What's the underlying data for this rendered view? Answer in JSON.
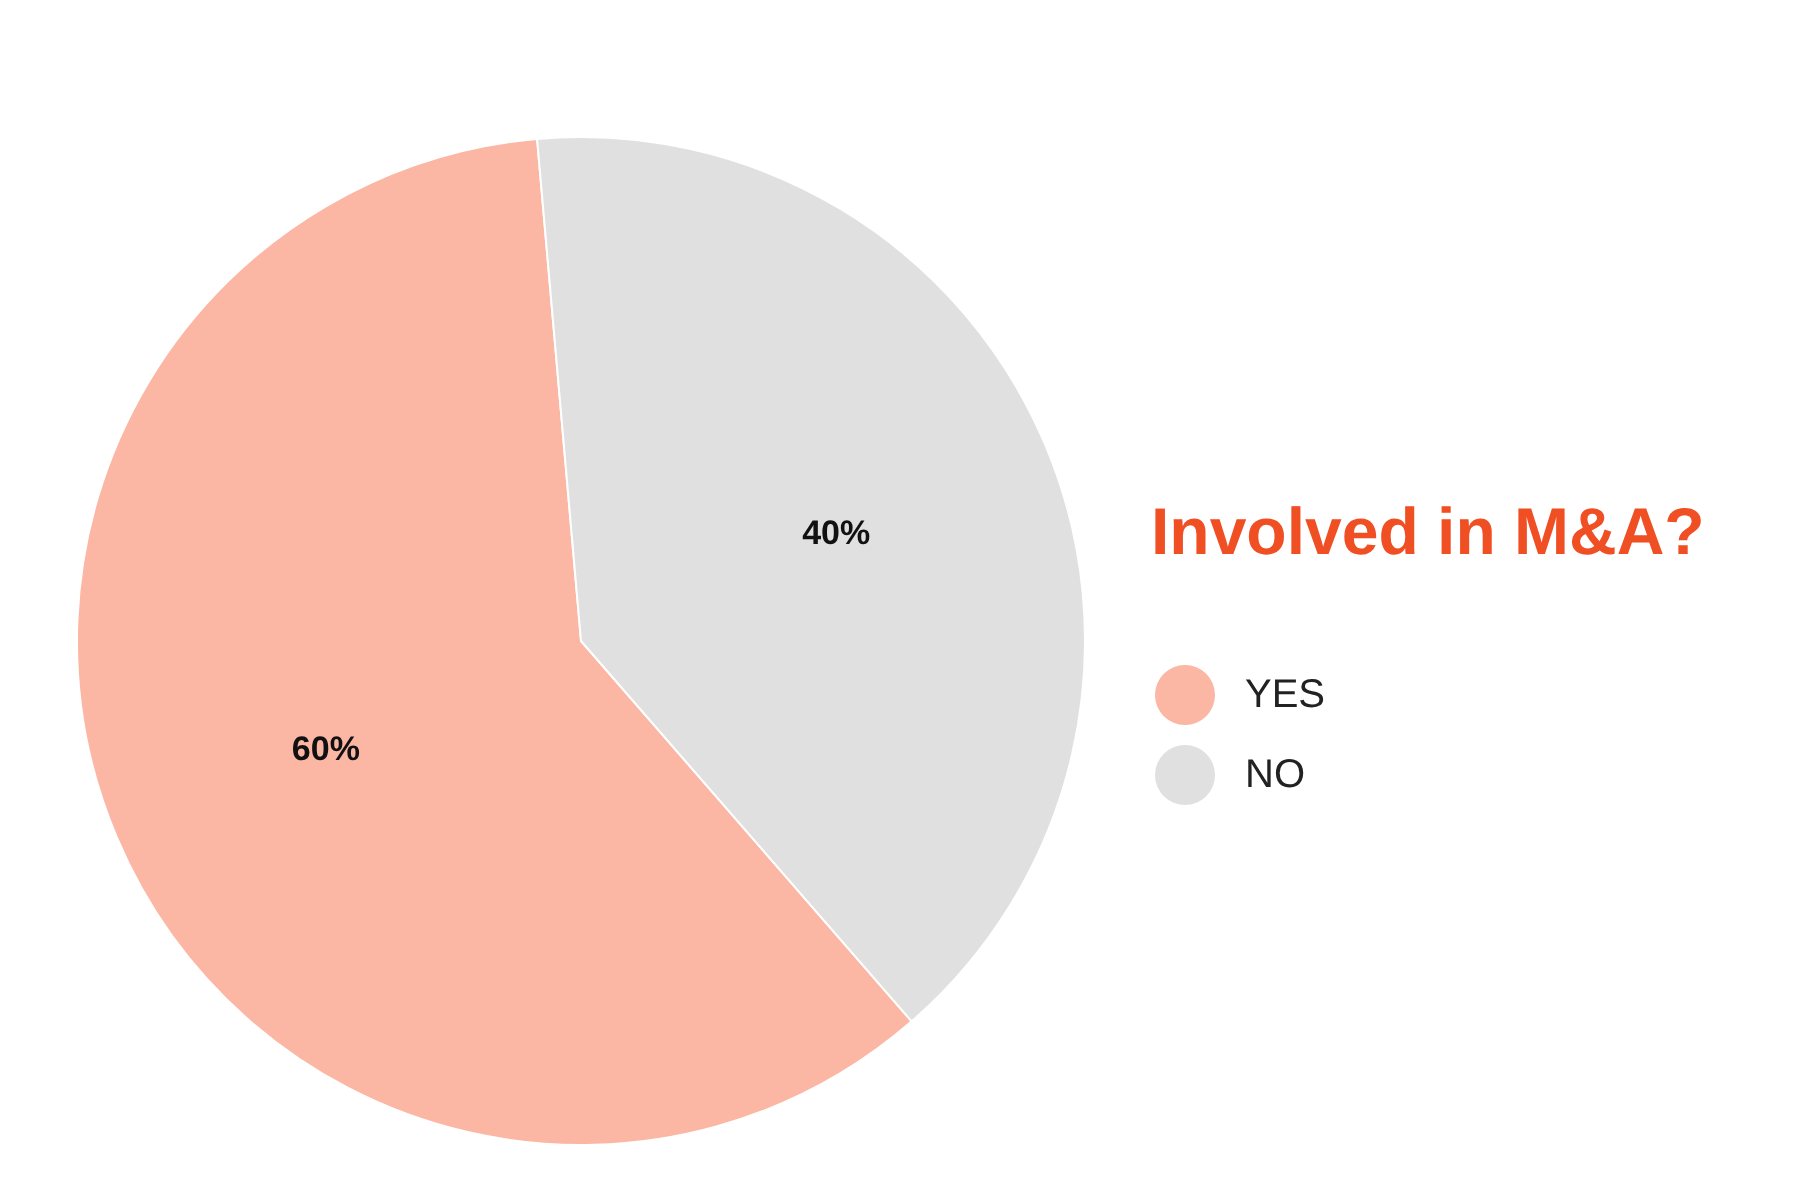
{
  "chart_data": {
    "type": "pie",
    "title": "Involved in M&A?",
    "categories": [
      "YES",
      "NO"
    ],
    "values": [
      60,
      40
    ],
    "colors": [
      "#fbb6a4",
      "#e0e0e0"
    ],
    "value_labels": [
      "60%",
      "40%"
    ],
    "legend": "right"
  }
}
